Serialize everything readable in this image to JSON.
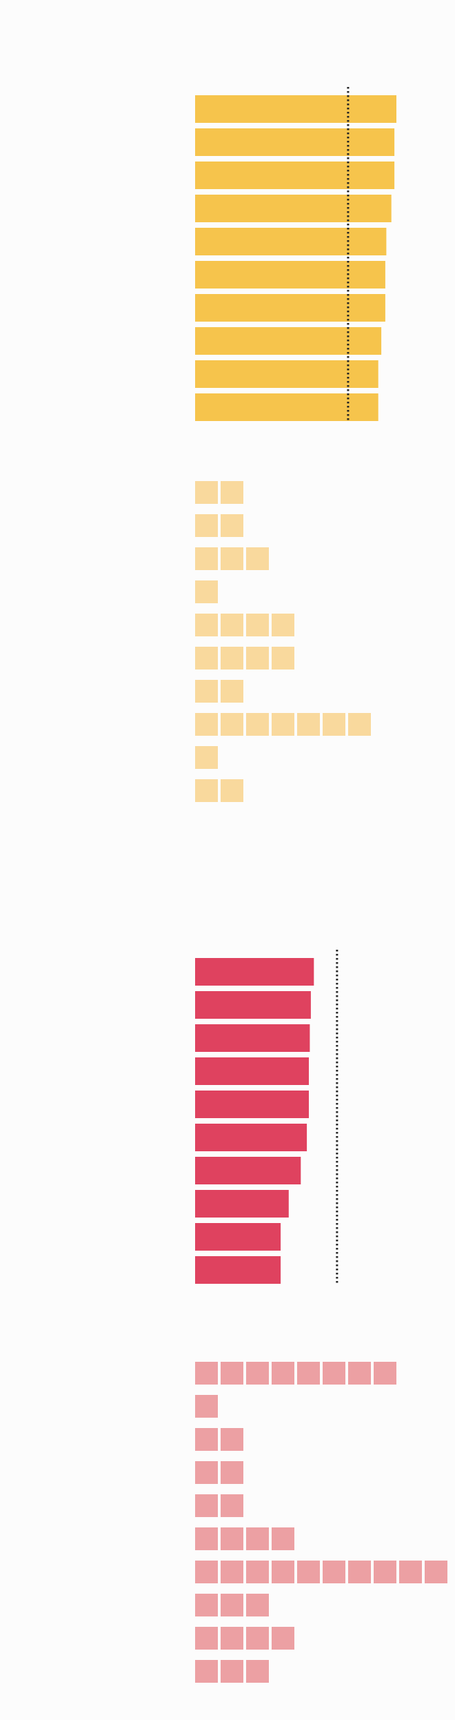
{
  "colors": {
    "background": "#fcfcfc",
    "gold_bar": "#f6c44c",
    "gold_square": "#f9d99d",
    "red_bar": "#df425f",
    "red_square": "#eca0a3",
    "reference_line": "#222222"
  },
  "chart_data": [
    {
      "type": "bar",
      "orientation": "horizontal",
      "color": "gold_bar",
      "xlim": [
        0,
        100
      ],
      "values": [
        100,
        99,
        99,
        97.5,
        95,
        94.5,
        94.5,
        92.5,
        91,
        91
      ],
      "reference_line": 76,
      "grid": false
    },
    {
      "type": "unit",
      "orientation": "horizontal",
      "color": "gold_square",
      "values": [
        2,
        2,
        3,
        1,
        4,
        4,
        2,
        7,
        1,
        2
      ]
    },
    {
      "type": "bar",
      "orientation": "horizontal",
      "color": "red_bar",
      "xlim": [
        0,
        100
      ],
      "values": [
        59,
        57.5,
        57,
        56.5,
        56.5,
        55.5,
        52.5,
        46.5,
        42.5,
        42.5
      ],
      "reference_line": 70.5,
      "grid": false
    },
    {
      "type": "unit",
      "orientation": "horizontal",
      "color": "red_square",
      "values": [
        8,
        1,
        2,
        2,
        2,
        4,
        10,
        3,
        4,
        3
      ]
    }
  ]
}
